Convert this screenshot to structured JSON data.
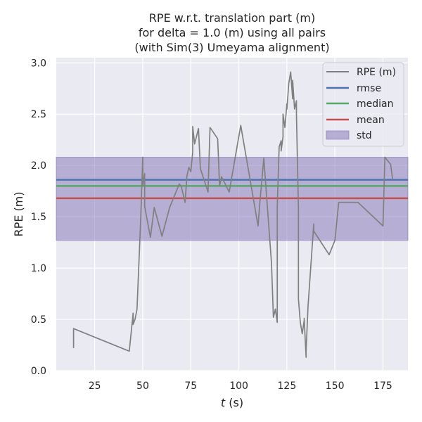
{
  "chart_data": {
    "type": "line",
    "title": [
      "RPE w.r.t. translation part (m)",
      "for delta = 1.0 (m) using all pairs",
      "(with Sim(3) Umeyama alignment)"
    ],
    "xlabel_var": "t",
    "xlabel_unit": " (s)",
    "ylabel": "RPE (m)",
    "xlim": [
      5,
      188
    ],
    "ylim": [
      0,
      3.05
    ],
    "xticks": [
      25,
      50,
      75,
      100,
      125,
      150,
      175
    ],
    "yticks": [
      0.0,
      0.5,
      1.0,
      1.5,
      2.0,
      2.5,
      3.0
    ],
    "ytick_labels": [
      "0.0",
      "0.5",
      "1.0",
      "1.5",
      "2.0",
      "2.5",
      "3.0"
    ],
    "grid": true,
    "legend_position": "top-right",
    "series": {
      "name": "RPE (m)",
      "color": "#808080",
      "x": [
        14,
        14,
        43,
        45,
        45,
        46,
        47,
        49,
        50,
        50,
        51,
        51,
        52,
        54,
        56,
        58,
        60,
        64,
        69,
        70,
        72,
        73,
        74,
        75,
        76,
        76,
        77,
        79,
        80,
        84,
        85,
        89,
        90,
        91,
        95,
        101,
        110,
        111,
        113,
        117,
        118,
        119,
        120,
        120,
        121,
        122,
        122,
        123,
        123,
        124,
        125,
        125,
        126,
        127,
        127,
        128,
        128,
        129,
        130,
        130,
        131,
        131,
        132,
        133,
        134,
        134,
        135,
        135,
        136,
        139,
        139,
        147,
        150,
        152,
        162,
        175,
        176,
        179,
        180
      ],
      "y": [
        0.22,
        0.41,
        0.19,
        0.56,
        0.45,
        0.5,
        0.6,
        1.5,
        2.08,
        1.8,
        1.92,
        1.6,
        1.5,
        1.3,
        1.59,
        1.45,
        1.31,
        1.59,
        1.82,
        1.8,
        1.64,
        1.9,
        1.98,
        1.94,
        2.13,
        2.38,
        2.21,
        2.36,
        1.97,
        1.74,
        2.37,
        2.26,
        1.8,
        1.89,
        1.74,
        2.39,
        1.41,
        1.65,
        2.07,
        1.05,
        0.52,
        0.6,
        0.47,
        1.6,
        2.18,
        2.24,
        2.14,
        2.28,
        2.5,
        2.37,
        2.6,
        2.55,
        2.8,
        2.91,
        2.91,
        2.65,
        2.83,
        2.55,
        2.63,
        2.5,
        1.58,
        0.7,
        0.47,
        0.36,
        0.49,
        0.51,
        0.13,
        0.19,
        0.62,
        1.43,
        1.36,
        1.13,
        1.27,
        1.64,
        1.64,
        1.41,
        2.08,
        2.01,
        1.87
      ]
    },
    "rmse": {
      "name": "rmse",
      "value": 1.86,
      "color": "#4c72b0"
    },
    "median": {
      "name": "median",
      "value": 1.8,
      "color": "#55a868"
    },
    "mean": {
      "name": "mean",
      "value": 1.68,
      "color": "#c44e52"
    },
    "std": {
      "name": "std",
      "lower": 1.27,
      "upper": 2.08,
      "color": "#8172b3"
    }
  }
}
